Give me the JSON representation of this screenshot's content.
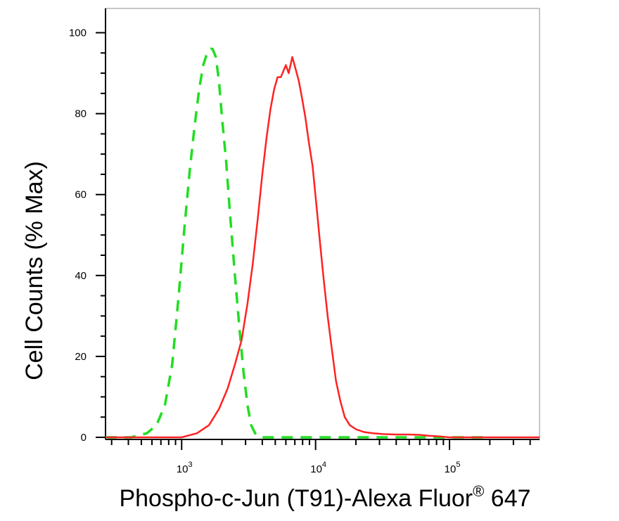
{
  "chart_data": {
    "type": "line",
    "title": "",
    "xlabel": "Phospho-c-Jun (T91)-Alexa Fluor",
    "xlabel_superscript": "®",
    "xlabel_suffix": " 647",
    "ylabel": "Cell Counts (% Max)",
    "x_scale": "log",
    "xlim": [
      270,
      470000
    ],
    "ylim": [
      0,
      106
    ],
    "x_ticks": [
      {
        "base": "10",
        "exp": "3"
      },
      {
        "base": "10",
        "exp": "4"
      },
      {
        "base": "10",
        "exp": "5"
      }
    ],
    "y_ticks": [
      "0",
      "20",
      "40",
      "60",
      "80",
      "100"
    ],
    "grid": false,
    "legend": "none",
    "series": [
      {
        "style": "dashed",
        "color": "#22dd22",
        "x": [
          270,
          420,
          550,
          650,
          750,
          850,
          950,
          1050,
          1150,
          1250,
          1350,
          1450,
          1550,
          1650,
          1700,
          1800,
          1900,
          2000,
          2150,
          2300,
          2500,
          2700,
          2900,
          3100,
          3300,
          3600,
          4000,
          5000,
          8000,
          20000,
          50000,
          200000
        ],
        "y": [
          0,
          0,
          1,
          3,
          8,
          18,
          35,
          52,
          66,
          77,
          86,
          92,
          95,
          96,
          96,
          94,
          88,
          79,
          68,
          55,
          40,
          27,
          16,
          8,
          3,
          0.5,
          0,
          0,
          0,
          0,
          0,
          0
        ]
      },
      {
        "style": "solid",
        "color": "#ff2222",
        "x": [
          270,
          1000,
          1300,
          1600,
          1900,
          2200,
          2500,
          2800,
          3100,
          3400,
          3700,
          4000,
          4300,
          4600,
          4900,
          5200,
          5500,
          6000,
          6300,
          6700,
          7100,
          7500,
          7900,
          8400,
          8900,
          9500,
          10100,
          10800,
          11500,
          12300,
          13200,
          14200,
          15300,
          16500,
          18000,
          20000,
          23000,
          27000,
          32000,
          40000,
          50000,
          60000,
          70000,
          85000,
          100000,
          470000
        ],
        "y": [
          0,
          0,
          1,
          3,
          7,
          12,
          18,
          24,
          33,
          43,
          54,
          65,
          74,
          81,
          86,
          89,
          89,
          92,
          90,
          94,
          91,
          88,
          84,
          79,
          73,
          67,
          58,
          48,
          39,
          30,
          22,
          14,
          9,
          5,
          3,
          2,
          1.3,
          1,
          0.8,
          0.7,
          0.7,
          0.6,
          0.4,
          0.2,
          0,
          0
        ]
      }
    ]
  }
}
